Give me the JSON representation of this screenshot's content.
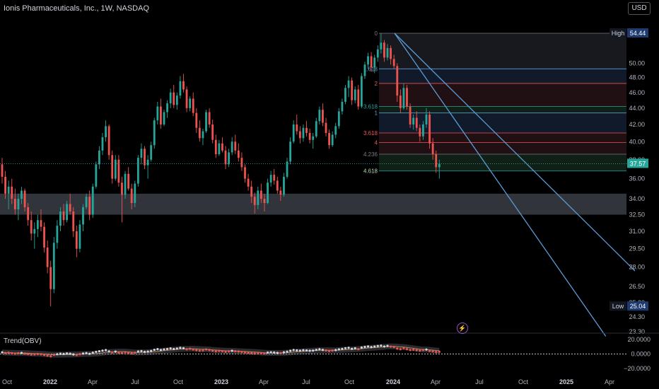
{
  "header": {
    "title": "Ionis Pharmaceuticals, Inc., 1W, NASDAQ",
    "currency_button": "USD"
  },
  "indicator": {
    "label": "Trend(OBV)"
  },
  "colors": {
    "up": "#26a69a",
    "down": "#ef5350",
    "accent": "#2962ff",
    "trendline": "#5b9bd5",
    "obv": "#ffffff"
  },
  "chart_data": {
    "type": "candlestick",
    "title": "Ionis Pharmaceuticals, Inc., 1W, NASDAQ",
    "price_axis": {
      "ticks": [
        "54.44",
        "50.00",
        "48.00",
        "46.00",
        "44.00",
        "42.00",
        "40.00",
        "38.00",
        "36.00",
        "34.00",
        "32.50",
        "31.00",
        "29.50",
        "28.00",
        "26.50",
        "25.30",
        "24.30",
        "23.30"
      ],
      "high_tag": {
        "label": "High",
        "value": "54.44"
      },
      "low_tag": {
        "label": "Low",
        "value": "25.04"
      },
      "last_price": "37.57",
      "log_scale": true
    },
    "time_axis": [
      "Oct",
      "2022",
      "Apr",
      "Jul",
      "Oct",
      "2023",
      "Apr",
      "Jul",
      "Oct",
      "2024",
      "Apr",
      "Jul",
      "Oct",
      "2025",
      "Apr"
    ],
    "support_zone": [
      32.5,
      34.5
    ],
    "fib_levels": [
      {
        "label": "0",
        "price": 54.44
      },
      {
        "label": "1.618",
        "price": 49.2
      },
      {
        "label": "2",
        "price": 47.2
      },
      {
        "label": "3.618",
        "price": 44.2
      },
      {
        "label": "1",
        "price": 43.4
      },
      {
        "label": "3.618",
        "price": 41.0
      },
      {
        "label": "4",
        "price": 39.9
      },
      {
        "label": "4.236",
        "price": 38.6
      },
      {
        "label": "4.618",
        "price": 36.8
      }
    ],
    "trendlines": [
      {
        "from": [
          "2023-12-15",
          54.44
        ],
        "to": [
          "2025-03-01",
          23.0
        ]
      },
      {
        "from": [
          "2023-12-15",
          54.44
        ],
        "to": [
          "2025-05-01",
          27.7
        ]
      }
    ],
    "obv_axis": {
      "ticks": [
        "20.0000",
        "0.0000",
        "−20.0000"
      ]
    },
    "candles_weekly": [
      [
        37.5,
        38.2,
        35.5,
        36.2
      ],
      [
        36.2,
        36.8,
        34.0,
        34.5
      ],
      [
        34.5,
        35.8,
        33.0,
        35.2
      ],
      [
        35.2,
        36.0,
        33.5,
        34.0
      ],
      [
        34.0,
        35.0,
        32.5,
        33.0
      ],
      [
        33.0,
        34.5,
        32.0,
        34.0
      ],
      [
        34.0,
        35.2,
        33.5,
        34.8
      ],
      [
        34.8,
        35.0,
        32.8,
        33.2
      ],
      [
        33.2,
        33.6,
        31.5,
        32.0
      ],
      [
        32.0,
        32.8,
        30.2,
        30.8
      ],
      [
        30.8,
        31.8,
        29.5,
        31.2
      ],
      [
        31.2,
        32.5,
        30.5,
        32.0
      ],
      [
        32.0,
        33.0,
        31.0,
        31.4
      ],
      [
        31.4,
        31.8,
        29.2,
        29.6
      ],
      [
        29.6,
        30.2,
        27.5,
        28.0
      ],
      [
        28.0,
        28.5,
        25.04,
        26.3
      ],
      [
        26.3,
        30.5,
        26.0,
        30.0
      ],
      [
        30.0,
        32.0,
        29.5,
        31.5
      ],
      [
        31.5,
        33.2,
        31.0,
        32.8
      ],
      [
        32.8,
        33.5,
        31.5,
        32.0
      ],
      [
        32.0,
        33.8,
        31.8,
        33.5
      ],
      [
        33.5,
        34.5,
        32.5,
        32.8
      ],
      [
        32.8,
        33.2,
        30.5,
        31.0
      ],
      [
        31.0,
        31.5,
        28.8,
        29.5
      ],
      [
        29.5,
        32.0,
        29.2,
        31.6
      ],
      [
        31.6,
        33.5,
        31.0,
        33.2
      ],
      [
        33.2,
        34.5,
        33.0,
        34.2
      ],
      [
        34.2,
        34.8,
        32.0,
        32.5
      ],
      [
        32.5,
        35.5,
        32.2,
        35.2
      ],
      [
        35.2,
        37.8,
        35.0,
        37.5
      ],
      [
        37.5,
        39.5,
        37.0,
        39.0
      ],
      [
        39.0,
        41.0,
        38.5,
        40.5
      ],
      [
        40.5,
        42.5,
        40.0,
        41.8
      ],
      [
        41.8,
        42.0,
        38.0,
        38.5
      ],
      [
        38.5,
        39.0,
        35.5,
        36.0
      ],
      [
        36.0,
        38.5,
        35.8,
        38.0
      ],
      [
        38.0,
        38.5,
        35.2,
        35.6
      ],
      [
        35.6,
        36.2,
        31.8,
        34.4
      ],
      [
        34.4,
        36.8,
        34.0,
        36.5
      ],
      [
        36.5,
        37.2,
        34.8,
        35.0
      ],
      [
        35.0,
        35.5,
        33.0,
        33.6
      ],
      [
        33.6,
        35.8,
        33.2,
        35.5
      ],
      [
        35.5,
        38.5,
        35.2,
        38.2
      ],
      [
        38.2,
        39.8,
        37.5,
        39.2
      ],
      [
        39.2,
        39.5,
        37.0,
        37.4
      ],
      [
        37.4,
        38.5,
        36.0,
        38.0
      ],
      [
        38.0,
        40.0,
        37.8,
        39.6
      ],
      [
        39.6,
        42.8,
        39.2,
        42.5
      ],
      [
        42.5,
        44.8,
        42.0,
        44.2
      ],
      [
        44.2,
        45.2,
        41.5,
        42.0
      ],
      [
        42.0,
        43.8,
        41.8,
        43.5
      ],
      [
        43.5,
        45.0,
        42.8,
        44.6
      ],
      [
        44.6,
        46.5,
        44.0,
        46.0
      ],
      [
        46.0,
        47.0,
        44.0,
        44.4
      ],
      [
        44.4,
        46.0,
        43.8,
        45.6
      ],
      [
        45.6,
        48.2,
        45.2,
        47.5
      ],
      [
        47.5,
        48.5,
        46.0,
        46.4
      ],
      [
        46.4,
        46.8,
        43.5,
        44.0
      ],
      [
        44.0,
        45.5,
        43.6,
        45.2
      ],
      [
        45.2,
        46.0,
        43.0,
        43.4
      ],
      [
        43.4,
        44.0,
        41.0,
        41.6
      ],
      [
        41.6,
        42.5,
        40.0,
        40.4
      ],
      [
        40.4,
        41.5,
        39.6,
        41.2
      ],
      [
        41.2,
        43.8,
        41.0,
        43.5
      ],
      [
        43.5,
        44.0,
        41.6,
        42.0
      ],
      [
        42.0,
        42.6,
        39.8,
        40.2
      ],
      [
        40.2,
        40.8,
        38.2,
        38.6
      ],
      [
        38.6,
        40.2,
        38.4,
        39.8
      ],
      [
        39.8,
        40.5,
        38.8,
        39.0
      ],
      [
        39.0,
        39.5,
        37.0,
        37.5
      ],
      [
        37.5,
        39.2,
        37.2,
        38.8
      ],
      [
        38.8,
        40.5,
        38.5,
        40.0
      ],
      [
        40.0,
        40.8,
        38.6,
        39.0
      ],
      [
        39.0,
        39.8,
        37.8,
        38.2
      ],
      [
        38.2,
        38.8,
        36.8,
        37.2
      ],
      [
        37.2,
        37.5,
        35.6,
        36.0
      ],
      [
        36.0,
        36.5,
        34.8,
        35.2
      ],
      [
        35.2,
        35.8,
        33.6,
        34.2
      ],
      [
        34.2,
        34.6,
        32.6,
        33.4
      ],
      [
        33.4,
        35.2,
        33.0,
        34.8
      ],
      [
        34.8,
        35.5,
        33.6,
        34.0
      ],
      [
        34.0,
        34.5,
        32.8,
        33.6
      ],
      [
        33.6,
        36.0,
        33.5,
        35.6
      ],
      [
        35.6,
        36.8,
        35.2,
        36.4
      ],
      [
        36.4,
        37.0,
        35.4,
        35.8
      ],
      [
        35.8,
        36.2,
        34.5,
        34.8
      ],
      [
        34.8,
        35.2,
        33.8,
        34.4
      ],
      [
        34.4,
        36.6,
        34.2,
        36.2
      ],
      [
        36.2,
        38.2,
        36.0,
        37.8
      ],
      [
        37.8,
        40.5,
        37.5,
        40.0
      ],
      [
        40.0,
        42.5,
        39.8,
        42.0
      ],
      [
        42.0,
        43.2,
        40.8,
        41.2
      ],
      [
        41.2,
        41.8,
        39.8,
        40.4
      ],
      [
        40.4,
        42.0,
        40.0,
        41.6
      ],
      [
        41.6,
        42.4,
        40.6,
        41.0
      ],
      [
        41.0,
        41.5,
        39.8,
        40.2
      ],
      [
        40.2,
        41.0,
        39.2,
        40.6
      ],
      [
        40.6,
        42.8,
        40.4,
        42.4
      ],
      [
        42.4,
        44.2,
        42.0,
        43.8
      ],
      [
        43.8,
        44.6,
        41.8,
        42.2
      ],
      [
        42.2,
        42.8,
        40.6,
        41.0
      ],
      [
        41.0,
        41.4,
        39.2,
        39.6
      ],
      [
        39.6,
        41.2,
        39.4,
        40.8
      ],
      [
        40.8,
        42.2,
        40.4,
        41.8
      ],
      [
        41.8,
        44.0,
        41.5,
        43.6
      ],
      [
        43.6,
        45.2,
        43.2,
        44.8
      ],
      [
        44.8,
        47.0,
        44.5,
        46.6
      ],
      [
        46.6,
        48.2,
        45.4,
        47.6
      ],
      [
        47.6,
        48.0,
        44.4,
        45.0
      ],
      [
        45.0,
        46.8,
        44.6,
        46.4
      ],
      [
        46.4,
        47.0,
        43.8,
        44.2
      ],
      [
        44.2,
        48.6,
        44.0,
        48.2
      ],
      [
        48.2,
        50.2,
        47.8,
        49.8
      ],
      [
        49.8,
        51.5,
        49.2,
        51.0
      ],
      [
        51.0,
        51.6,
        48.8,
        49.4
      ],
      [
        49.4,
        51.2,
        48.6,
        50.8
      ],
      [
        50.8,
        52.6,
        50.2,
        52.0
      ],
      [
        52.0,
        54.44,
        51.4,
        53.0
      ],
      [
        53.0,
        53.4,
        50.2,
        50.8
      ],
      [
        50.8,
        52.8,
        50.4,
        52.2
      ],
      [
        52.2,
        52.6,
        49.8,
        50.6
      ],
      [
        50.6,
        51.2,
        49.2,
        49.6
      ],
      [
        49.6,
        50.0,
        44.8,
        45.6
      ],
      [
        45.6,
        46.4,
        43.4,
        44.0
      ],
      [
        44.0,
        47.2,
        43.8,
        46.6
      ],
      [
        46.6,
        47.0,
        43.8,
        44.2
      ],
      [
        44.2,
        44.6,
        41.6,
        42.0
      ],
      [
        42.0,
        43.2,
        41.4,
        42.8
      ],
      [
        42.8,
        43.6,
        41.2,
        41.6
      ],
      [
        41.6,
        42.0,
        40.0,
        40.6
      ],
      [
        40.6,
        42.4,
        40.2,
        42.0
      ],
      [
        42.0,
        44.0,
        41.6,
        43.2
      ],
      [
        43.2,
        43.6,
        39.2,
        39.8
      ],
      [
        39.8,
        40.4,
        38.0,
        38.6
      ],
      [
        38.6,
        39.0,
        36.6,
        37.2
      ],
      [
        37.2,
        38.0,
        36.0,
        37.57
      ]
    ]
  }
}
